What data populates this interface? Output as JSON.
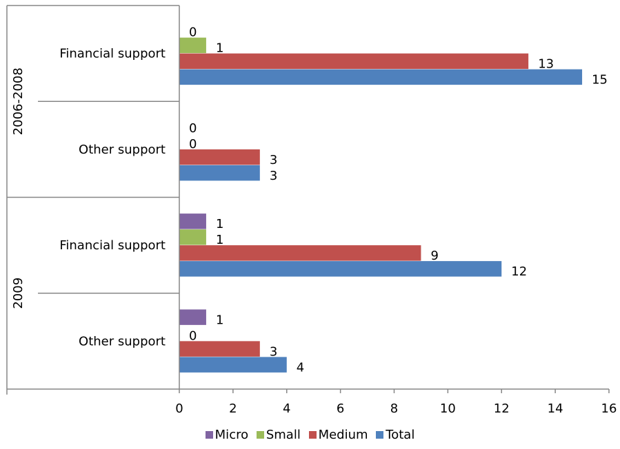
{
  "chart_data": {
    "type": "bar",
    "orientation": "horizontal",
    "groups": [
      {
        "label": "2006-2008",
        "categories": [
          {
            "label": "Financial support",
            "values": {
              "Micro": null,
              "Small": 1,
              "Medium": 13,
              "Total": 15
            },
            "labels": {
              "Micro": "0",
              "Small": "1",
              "Medium": "13",
              "Total": "15"
            }
          },
          {
            "label": "Other support",
            "values": {
              "Micro": null,
              "Small": null,
              "Medium": 3,
              "Total": 3
            },
            "labels": {
              "Micro": "0",
              "Small": "0",
              "Medium": "3",
              "Total": "3"
            }
          }
        ]
      },
      {
        "label": "2009",
        "categories": [
          {
            "label": "Financial support",
            "values": {
              "Micro": 1,
              "Small": 1,
              "Medium": 9,
              "Total": 12
            },
            "labels": {
              "Micro": "1",
              "Small": "1",
              "Medium": "9",
              "Total": "12"
            }
          },
          {
            "label": "Other support",
            "values": {
              "Micro": 1,
              "Small": null,
              "Medium": 3,
              "Total": 4
            },
            "labels": {
              "Micro": "1",
              "Small": "0",
              "Medium": "3",
              "Total": "4"
            }
          }
        ]
      }
    ],
    "series": [
      {
        "name": "Micro",
        "color": "#8064a2"
      },
      {
        "name": "Small",
        "color": "#9bbb59"
      },
      {
        "name": "Medium",
        "color": "#c0504d"
      },
      {
        "name": "Total",
        "color": "#4f81bd"
      }
    ],
    "xlim": [
      0,
      16
    ],
    "xticks": [
      0,
      2,
      4,
      6,
      8,
      10,
      12,
      14,
      16
    ],
    "grid": false,
    "legend_position": "bottom"
  }
}
